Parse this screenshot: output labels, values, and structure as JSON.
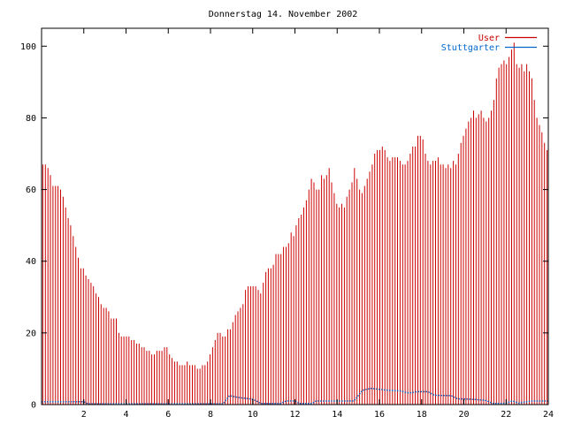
{
  "chart_data": {
    "type": "bar",
    "title": "Donnerstag 14. November 2002",
    "xlabel": "",
    "ylabel": "",
    "xlim": [
      0,
      24
    ],
    "ylim": [
      0,
      105
    ],
    "x_ticks": [
      "2",
      "4",
      "6",
      "8",
      "10",
      "12",
      "14",
      "16",
      "18",
      "20",
      "22",
      "24"
    ],
    "y_ticks": [
      "0",
      "20",
      "40",
      "60",
      "80",
      "100"
    ],
    "legend_position": "top-right",
    "grid": false,
    "series": [
      {
        "name": "User",
        "color": "#cc0000",
        "style": "impulses",
        "values": [
          67,
          67,
          66,
          64,
          61,
          61,
          61,
          60,
          58,
          55,
          52,
          50,
          47,
          44,
          41,
          38,
          38,
          36,
          35,
          34,
          33,
          31,
          30,
          28,
          27,
          27,
          26,
          24,
          24,
          24,
          20,
          19,
          19,
          19,
          19,
          18,
          18,
          17,
          17,
          16,
          16,
          15,
          15,
          14,
          14,
          15,
          15,
          15,
          16,
          16,
          14,
          13,
          12,
          12,
          11,
          11,
          11,
          12,
          11,
          11,
          11,
          10,
          10,
          11,
          11,
          12,
          14,
          16,
          18,
          20,
          20,
          19,
          19,
          21,
          21,
          23,
          25,
          26,
          27,
          28,
          32,
          33,
          33,
          33,
          33,
          32,
          31,
          34,
          37,
          38,
          38,
          39,
          42,
          42,
          42,
          44,
          44,
          45,
          48,
          47,
          50,
          52,
          53,
          55,
          57,
          60,
          63,
          62,
          60,
          60,
          64,
          63,
          64,
          66,
          62,
          59,
          56,
          55,
          56,
          55,
          58,
          60,
          62,
          66,
          63,
          60,
          59,
          61,
          63,
          65,
          67,
          70,
          71,
          71,
          72,
          71,
          69,
          68,
          69,
          69,
          69,
          68,
          67,
          67,
          68,
          70,
          72,
          72,
          75,
          75,
          74,
          70,
          68,
          67,
          68,
          68,
          69,
          67,
          67,
          66,
          67,
          66,
          68,
          67,
          70,
          73,
          75,
          77,
          79,
          80,
          82,
          80,
          81,
          82,
          80,
          79,
          80,
          82,
          85,
          91,
          94,
          95,
          96,
          95,
          97,
          99,
          101,
          95,
          94,
          95,
          93,
          95,
          93,
          91,
          85,
          80,
          78,
          76,
          73,
          71
        ]
      },
      {
        "name": "Stuttgarter",
        "color": "#0066cc",
        "style": "dotted-line",
        "points": [
          [
            0,
            0.8
          ],
          [
            2,
            0.8
          ],
          [
            2.2,
            0.2
          ],
          [
            8.6,
            0.2
          ],
          [
            8.9,
            2.5
          ],
          [
            9.3,
            2.0
          ],
          [
            10.0,
            1.5
          ],
          [
            10.4,
            0.3
          ],
          [
            11.3,
            0.3
          ],
          [
            11.6,
            1.0
          ],
          [
            12.0,
            1.0
          ],
          [
            12.2,
            0.3
          ],
          [
            12.8,
            0.3
          ],
          [
            13.0,
            1.0
          ],
          [
            14.8,
            1.0
          ],
          [
            15.2,
            4.0
          ],
          [
            15.6,
            4.5
          ],
          [
            16.4,
            4.0
          ],
          [
            17.0,
            3.8
          ],
          [
            17.4,
            3.2
          ],
          [
            17.8,
            3.6
          ],
          [
            18.3,
            3.6
          ],
          [
            18.6,
            2.6
          ],
          [
            19.4,
            2.5
          ],
          [
            19.7,
            1.6
          ],
          [
            20.3,
            1.5
          ],
          [
            21.0,
            1.2
          ],
          [
            21.4,
            0.3
          ],
          [
            22.0,
            0.4
          ],
          [
            22.3,
            1.0
          ],
          [
            22.6,
            0.4
          ],
          [
            23.2,
            1.0
          ],
          [
            24,
            1.0
          ]
        ]
      }
    ]
  }
}
